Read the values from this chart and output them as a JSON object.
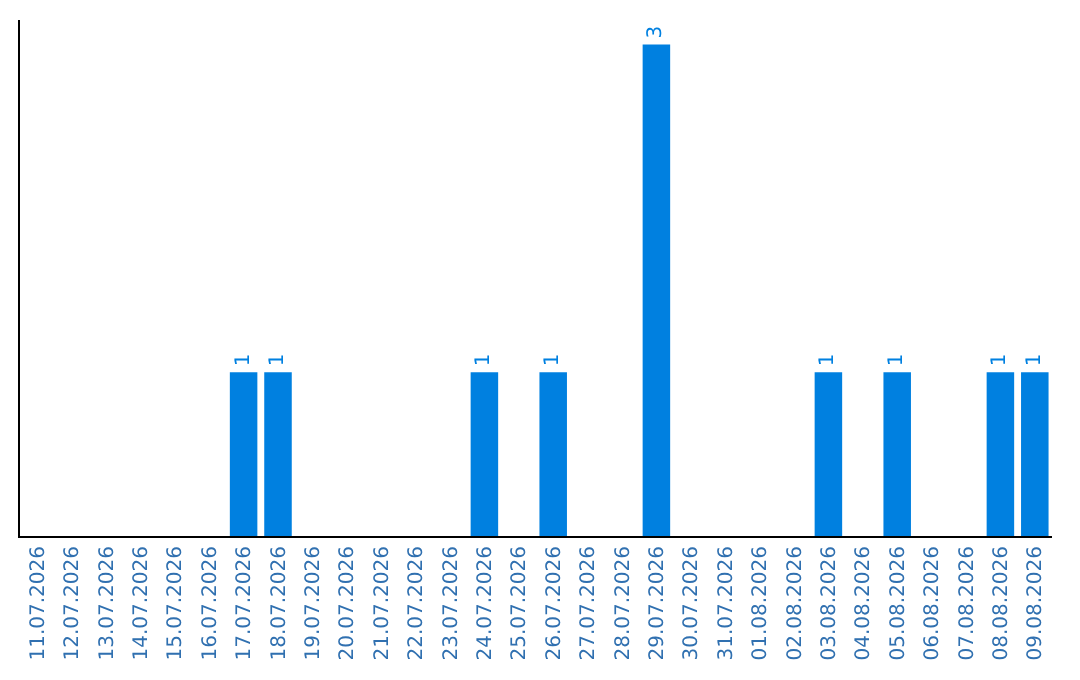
{
  "chart_data": {
    "type": "bar",
    "categories": [
      "11.07.2026",
      "12.07.2026",
      "13.07.2026",
      "14.07.2026",
      "15.07.2026",
      "16.07.2026",
      "17.07.2026",
      "18.07.2026",
      "19.07.2026",
      "20.07.2026",
      "21.07.2026",
      "22.07.2026",
      "23.07.2026",
      "24.07.2026",
      "25.07.2026",
      "26.07.2026",
      "27.07.2026",
      "28.07.2026",
      "29.07.2026",
      "30.07.2026",
      "31.07.2026",
      "01.08.2026",
      "02.08.2026",
      "03.08.2026",
      "04.08.2026",
      "05.08.2026",
      "06.08.2026",
      "07.08.2026",
      "08.08.2026",
      "09.08.2026"
    ],
    "values": [
      0,
      0,
      0,
      0,
      0,
      0,
      1,
      1,
      0,
      0,
      0,
      0,
      0,
      1,
      0,
      1,
      0,
      0,
      3,
      0,
      0,
      0,
      0,
      1,
      0,
      1,
      0,
      0,
      1,
      1
    ],
    "value_labels": [
      null,
      null,
      null,
      null,
      null,
      null,
      "1",
      "1",
      null,
      null,
      null,
      null,
      null,
      "1",
      null,
      "1",
      null,
      null,
      "3",
      null,
      null,
      null,
      null,
      "1",
      null,
      "1",
      null,
      null,
      "1",
      "1"
    ],
    "color": "#0080e0",
    "tick_labels": "x",
    "legend": false
  }
}
